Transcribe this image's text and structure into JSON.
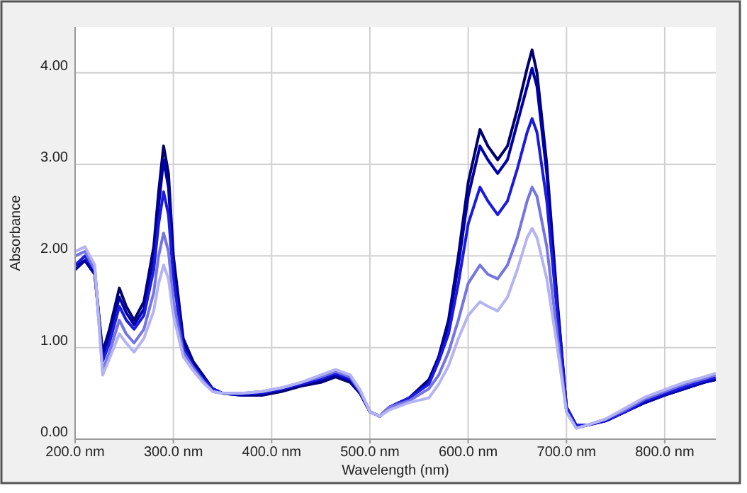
{
  "chart_data": {
    "type": "line",
    "xlabel": "Wavelength (nm)",
    "ylabel": "Absorbance",
    "grid": true,
    "marker": "none",
    "line_style": "solid",
    "xlim": [
      200,
      852
    ],
    "ylim": [
      0,
      4.5
    ],
    "xticks": [
      {
        "value": 200,
        "label": "200.0 nm"
      },
      {
        "value": 300,
        "label": "300.0 nm"
      },
      {
        "value": 400,
        "label": "400.0 nm"
      },
      {
        "value": 500,
        "label": "500.0 nm"
      },
      {
        "value": 600,
        "label": "600.0 nm"
      },
      {
        "value": 700,
        "label": "700.0 nm"
      },
      {
        "value": 800,
        "label": "800.0 nm"
      }
    ],
    "yticks": [
      {
        "value": 0,
        "label": "0.00"
      },
      {
        "value": 1,
        "label": "1.00"
      },
      {
        "value": 2,
        "label": "2.00"
      },
      {
        "value": 3,
        "label": "3.00"
      },
      {
        "value": 4,
        "label": "4.00"
      }
    ],
    "x": [
      200,
      210,
      220,
      228,
      235,
      245,
      252,
      260,
      270,
      280,
      285,
      290,
      295,
      300,
      310,
      320,
      330,
      340,
      350,
      370,
      390,
      410,
      430,
      450,
      465,
      480,
      490,
      500,
      510,
      520,
      540,
      560,
      570,
      580,
      590,
      600,
      612,
      620,
      630,
      640,
      650,
      660,
      665,
      670,
      680,
      690,
      700,
      710,
      720,
      740,
      760,
      780,
      800,
      820,
      840,
      852
    ],
    "series": [
      {
        "color": "#00006e",
        "values": [
          1.9,
          1.95,
          1.8,
          0.95,
          1.2,
          1.65,
          1.45,
          1.3,
          1.5,
          2.1,
          2.7,
          3.2,
          2.9,
          2.0,
          1.1,
          0.85,
          0.7,
          0.55,
          0.5,
          0.48,
          0.48,
          0.52,
          0.58,
          0.62,
          0.68,
          0.62,
          0.5,
          0.3,
          0.25,
          0.35,
          0.45,
          0.65,
          0.9,
          1.3,
          2.0,
          2.8,
          3.38,
          3.2,
          3.05,
          3.2,
          3.6,
          4.05,
          4.25,
          4.0,
          3.0,
          1.6,
          0.35,
          0.15,
          0.15,
          0.2,
          0.3,
          0.4,
          0.48,
          0.55,
          0.62,
          0.65
        ]
      },
      {
        "color": "#0000a8",
        "values": [
          1.85,
          1.95,
          1.8,
          0.9,
          1.12,
          1.55,
          1.38,
          1.25,
          1.42,
          2.0,
          2.55,
          3.05,
          2.75,
          1.9,
          1.05,
          0.82,
          0.68,
          0.55,
          0.5,
          0.48,
          0.5,
          0.54,
          0.6,
          0.64,
          0.7,
          0.64,
          0.5,
          0.3,
          0.25,
          0.35,
          0.45,
          0.62,
          0.88,
          1.25,
          1.9,
          2.65,
          3.2,
          3.05,
          2.9,
          3.05,
          3.45,
          3.85,
          4.05,
          3.85,
          2.9,
          1.55,
          0.35,
          0.15,
          0.15,
          0.2,
          0.3,
          0.4,
          0.48,
          0.55,
          0.62,
          0.65
        ]
      },
      {
        "color": "#1a1ae0",
        "values": [
          1.9,
          2.0,
          1.85,
          0.85,
          1.05,
          1.45,
          1.3,
          1.2,
          1.35,
          1.85,
          2.35,
          2.7,
          2.45,
          1.75,
          1.0,
          0.8,
          0.66,
          0.55,
          0.5,
          0.5,
          0.5,
          0.55,
          0.6,
          0.66,
          0.72,
          0.66,
          0.52,
          0.3,
          0.25,
          0.35,
          0.45,
          0.6,
          0.85,
          1.15,
          1.7,
          2.35,
          2.75,
          2.6,
          2.45,
          2.6,
          2.95,
          3.35,
          3.5,
          3.35,
          2.6,
          1.45,
          0.35,
          0.15,
          0.15,
          0.2,
          0.3,
          0.42,
          0.5,
          0.57,
          0.64,
          0.67
        ]
      },
      {
        "color": "#7474e4",
        "values": [
          2.0,
          2.05,
          1.85,
          0.75,
          0.95,
          1.3,
          1.15,
          1.05,
          1.2,
          1.6,
          2.0,
          2.25,
          2.05,
          1.5,
          0.95,
          0.78,
          0.64,
          0.52,
          0.5,
          0.5,
          0.52,
          0.56,
          0.62,
          0.68,
          0.74,
          0.68,
          0.52,
          0.3,
          0.25,
          0.35,
          0.42,
          0.55,
          0.7,
          0.95,
          1.3,
          1.7,
          1.9,
          1.8,
          1.75,
          1.9,
          2.2,
          2.6,
          2.75,
          2.65,
          2.1,
          1.2,
          0.3,
          0.12,
          0.15,
          0.22,
          0.32,
          0.44,
          0.52,
          0.6,
          0.66,
          0.7
        ]
      },
      {
        "color": "#b4b4f2",
        "values": [
          2.05,
          2.1,
          1.9,
          0.7,
          0.88,
          1.15,
          1.05,
          0.95,
          1.1,
          1.4,
          1.7,
          1.9,
          1.75,
          1.35,
          0.9,
          0.75,
          0.62,
          0.52,
          0.5,
          0.5,
          0.52,
          0.56,
          0.62,
          0.7,
          0.76,
          0.7,
          0.54,
          0.3,
          0.25,
          0.32,
          0.4,
          0.45,
          0.6,
          0.8,
          1.1,
          1.35,
          1.5,
          1.45,
          1.4,
          1.55,
          1.85,
          2.2,
          2.3,
          2.2,
          1.75,
          1.05,
          0.3,
          0.12,
          0.15,
          0.22,
          0.34,
          0.46,
          0.54,
          0.62,
          0.68,
          0.72
        ]
      }
    ]
  }
}
